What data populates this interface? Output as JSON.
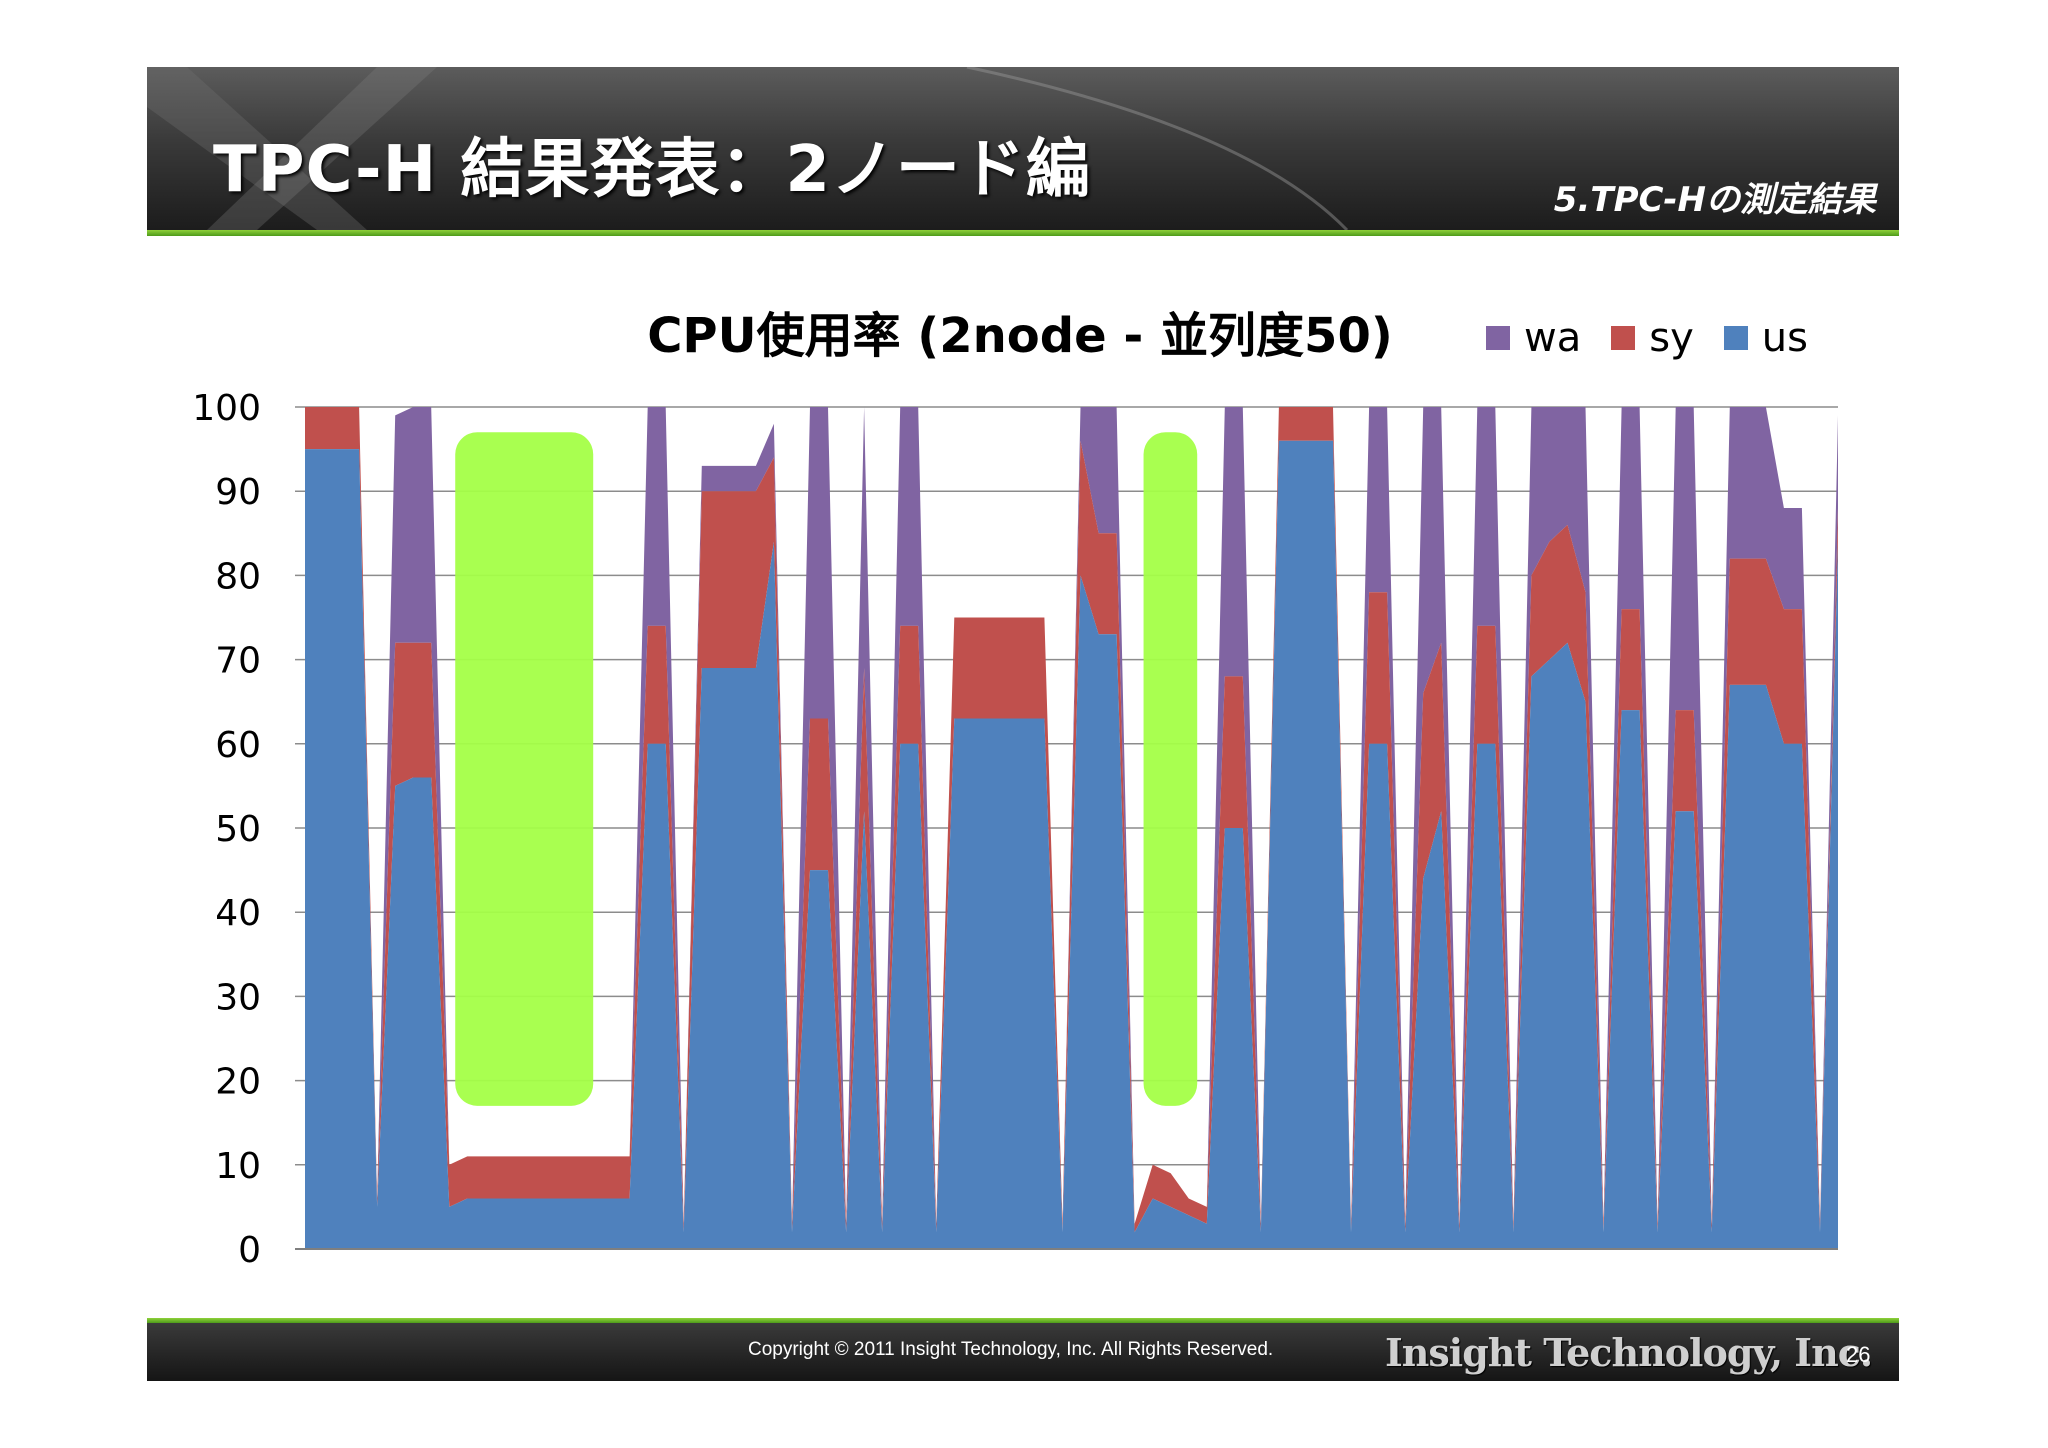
{
  "slide": {
    "title": "TPC-H 結果発表：2ノード編",
    "section": "5.TPC-Hの測定結果"
  },
  "footer": {
    "copyright": "Copyright © 2011 Insight Technology, Inc. All Rights Reserved.",
    "company": "Insight Technology, Inc.",
    "page_number": "26"
  },
  "colors": {
    "us": "#4f81bd",
    "sy": "#c0504d",
    "wa": "#8064a2",
    "highlight": "#a4ff47",
    "header_accent": "#6fbf2a"
  },
  "chart_data": {
    "type": "area",
    "stacked": true,
    "title": "CPU使用率 (2node - 並列度50)",
    "xlabel": "",
    "ylabel": "",
    "ylim": [
      0,
      100
    ],
    "yticks": [
      "0",
      "10",
      "20",
      "30",
      "40",
      "50",
      "60",
      "70",
      "80",
      "90",
      "100"
    ],
    "grid": true,
    "legend_position": "top-right",
    "legend": [
      {
        "key": "wa",
        "label": "wa"
      },
      {
        "key": "sy",
        "label": "sy"
      },
      {
        "key": "us",
        "label": "us"
      }
    ],
    "series": [
      {
        "name": "us",
        "values": [
          95,
          95,
          95,
          95,
          5,
          55,
          56,
          56,
          5,
          6,
          6,
          6,
          6,
          6,
          6,
          6,
          6,
          6,
          6,
          60,
          60,
          2,
          69,
          69,
          69,
          69,
          84,
          2,
          45,
          45,
          2,
          52,
          2,
          60,
          60,
          2,
          63,
          63,
          63,
          63,
          63,
          63,
          2,
          80,
          73,
          73,
          2,
          6,
          5,
          4,
          3,
          50,
          50,
          2,
          96,
          96,
          96,
          96,
          2,
          60,
          60,
          2,
          44,
          52,
          2,
          60,
          60,
          2,
          68,
          70,
          72,
          65,
          2,
          64,
          64,
          2,
          52,
          52,
          2,
          67,
          67,
          67,
          60,
          60,
          2,
          84
        ]
      },
      {
        "name": "sy",
        "values": [
          5,
          5,
          5,
          5,
          1,
          17,
          16,
          16,
          5,
          5,
          5,
          5,
          5,
          5,
          5,
          5,
          5,
          5,
          5,
          14,
          14,
          1,
          21,
          21,
          21,
          21,
          10,
          1,
          18,
          18,
          1,
          17,
          1,
          14,
          14,
          1,
          12,
          12,
          12,
          12,
          12,
          12,
          1,
          16,
          12,
          12,
          1,
          4,
          4,
          2,
          2,
          18,
          18,
          1,
          4,
          4,
          4,
          4,
          1,
          18,
          18,
          1,
          22,
          20,
          1,
          14,
          14,
          1,
          12,
          14,
          14,
          13,
          1,
          12,
          12,
          1,
          12,
          12,
          1,
          15,
          15,
          15,
          16,
          16,
          1,
          4
        ]
      },
      {
        "name": "wa",
        "values": [
          0,
          0,
          0,
          0,
          0,
          27,
          28,
          28,
          0,
          0,
          0,
          0,
          0,
          0,
          0,
          0,
          0,
          0,
          0,
          26,
          26,
          0,
          3,
          3,
          3,
          3,
          4,
          0,
          37,
          37,
          0,
          31,
          0,
          26,
          26,
          0,
          0,
          0,
          0,
          0,
          0,
          0,
          0,
          4,
          15,
          15,
          0,
          0,
          0,
          0,
          0,
          32,
          32,
          0,
          0,
          0,
          0,
          0,
          0,
          22,
          22,
          0,
          34,
          28,
          0,
          26,
          26,
          0,
          20,
          16,
          14,
          22,
          0,
          24,
          24,
          0,
          36,
          36,
          0,
          18,
          18,
          18,
          12,
          12,
          0,
          11
        ]
      }
    ],
    "annotations": [
      {
        "type": "highlight-box",
        "x_start_fraction": 0.098,
        "x_end_fraction": 0.188,
        "y_low": 17,
        "y_high": 97
      },
      {
        "type": "highlight-box",
        "x_start_fraction": 0.547,
        "x_end_fraction": 0.582,
        "y_low": 17,
        "y_high": 97
      }
    ]
  }
}
